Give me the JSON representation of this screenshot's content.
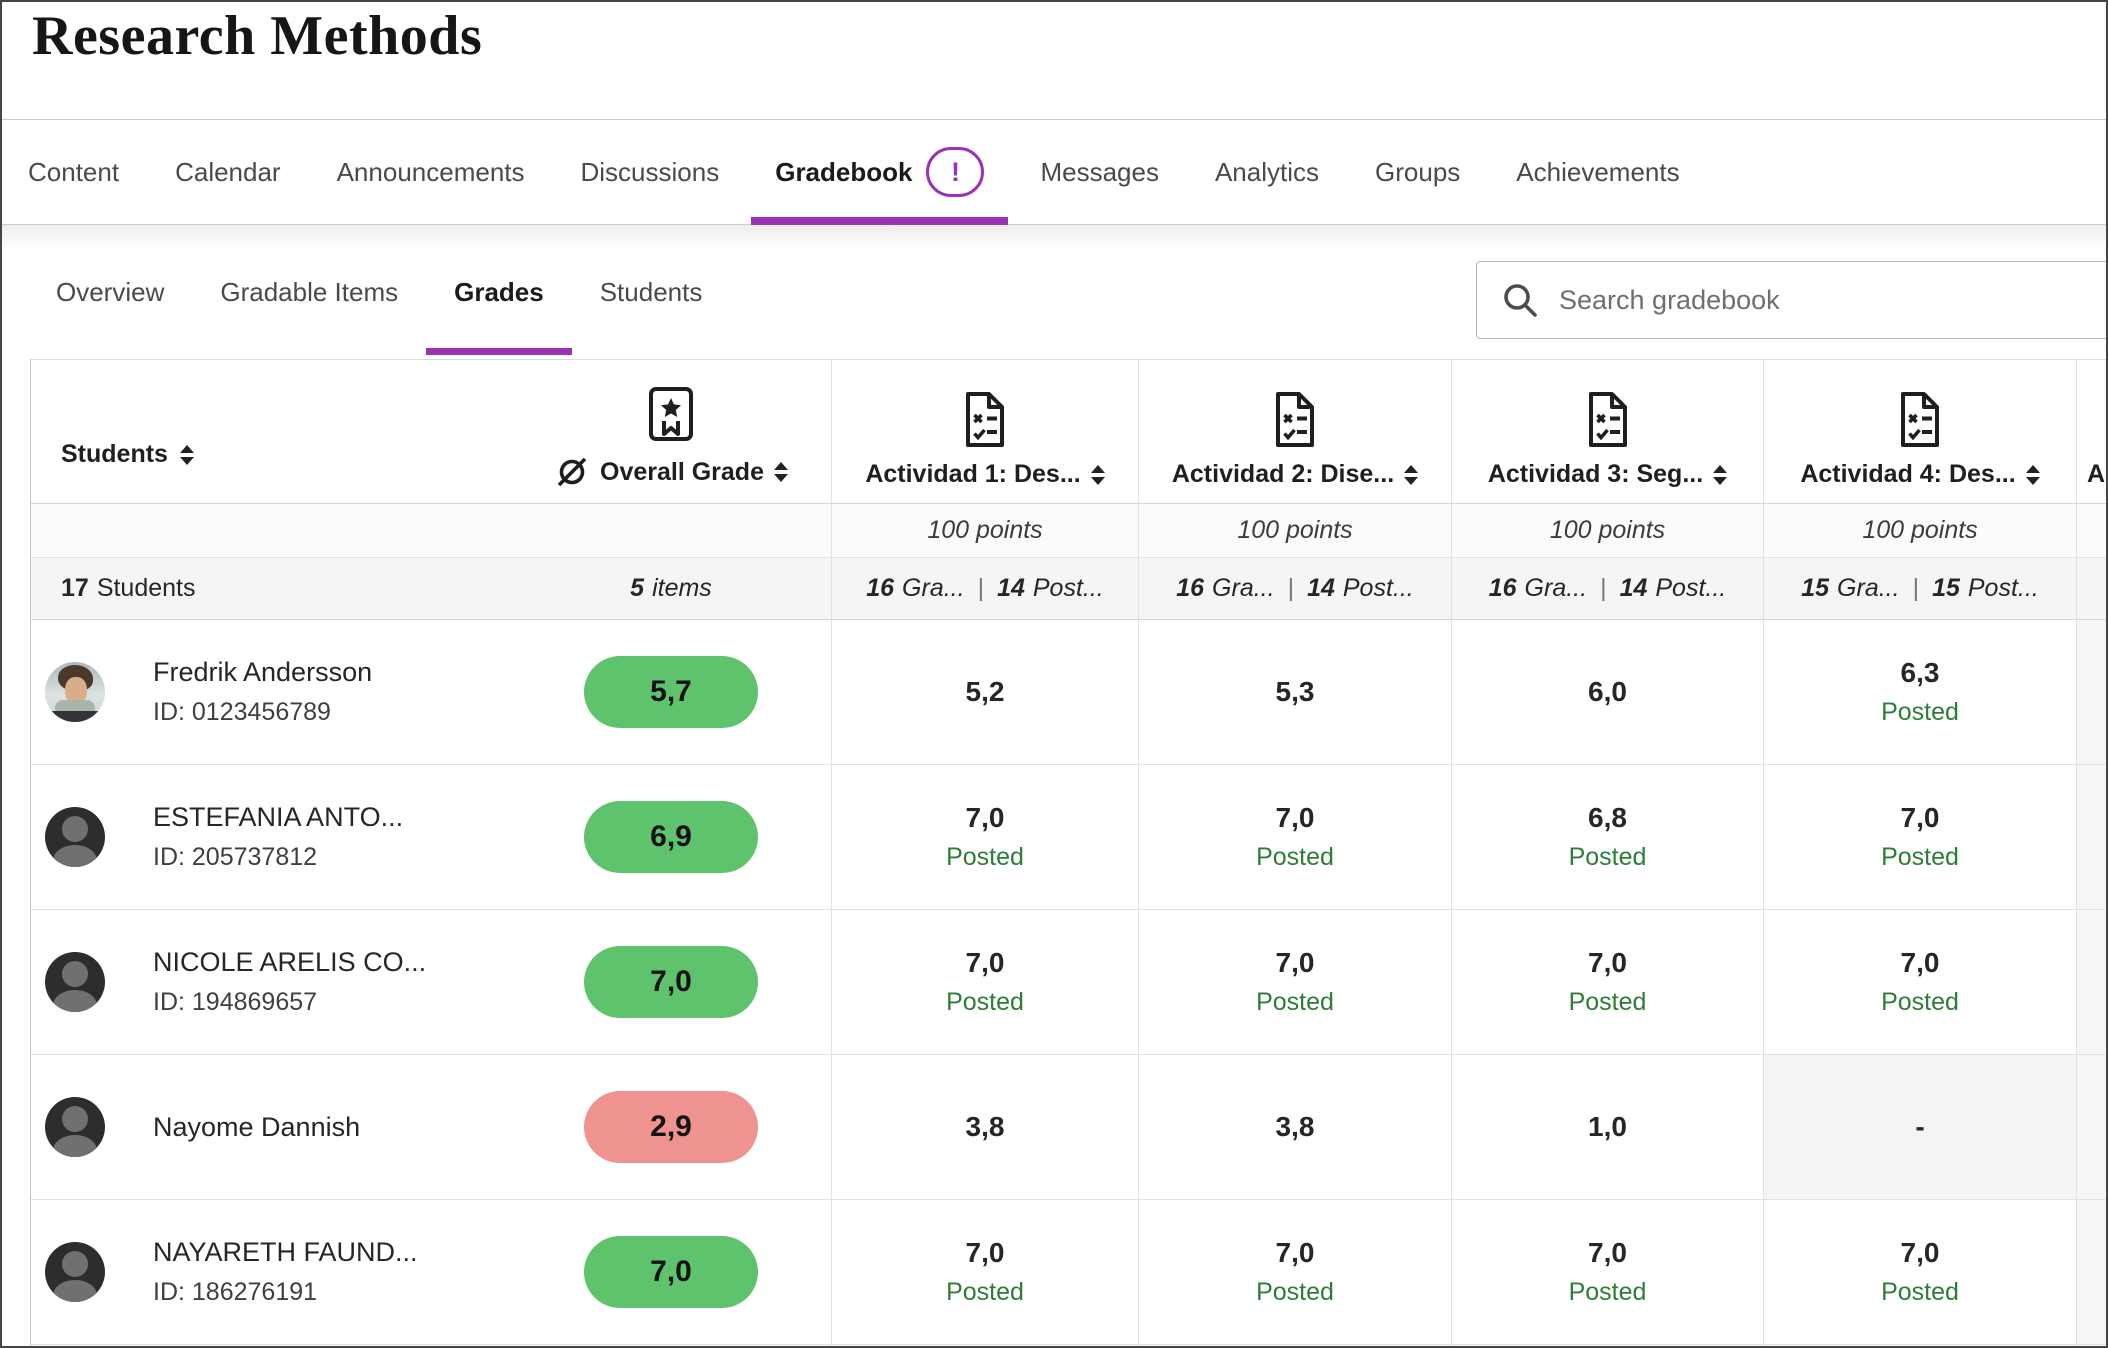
{
  "page": {
    "title": "Research Methods"
  },
  "main_tabs": [
    {
      "label": "Content"
    },
    {
      "label": "Calendar"
    },
    {
      "label": "Announcements"
    },
    {
      "label": "Discussions"
    },
    {
      "label": "Gradebook",
      "active": true,
      "badge": "!"
    },
    {
      "label": "Messages"
    },
    {
      "label": "Analytics"
    },
    {
      "label": "Groups"
    },
    {
      "label": "Achievements"
    }
  ],
  "sub_tabs": [
    {
      "label": "Overview"
    },
    {
      "label": "Gradable Items"
    },
    {
      "label": "Grades",
      "active": true
    },
    {
      "label": "Students"
    }
  ],
  "search": {
    "placeholder": "Search gradebook"
  },
  "table": {
    "students_header": {
      "label": "Students"
    },
    "overall_header": {
      "label": "Overall Grade"
    },
    "summary": {
      "students_count": "17",
      "students_label": "Students",
      "items_count": "5",
      "items_label": "items"
    },
    "columns": [
      {
        "label": "Actividad 1: Des...",
        "points": "100 points",
        "graded_count": "16",
        "graded_label": "Gra...",
        "posted_count": "14",
        "posted_label": "Post..."
      },
      {
        "label": "Actividad 2: Dise...",
        "points": "100 points",
        "graded_count": "16",
        "graded_label": "Gra...",
        "posted_count": "14",
        "posted_label": "Post..."
      },
      {
        "label": "Actividad 3: Seg...",
        "points": "100 points",
        "graded_count": "16",
        "graded_label": "Gra...",
        "posted_count": "14",
        "posted_label": "Post..."
      },
      {
        "label": "Actividad 4: Des...",
        "points": "100 points",
        "graded_count": "15",
        "graded_label": "Gra...",
        "posted_count": "15",
        "posted_label": "Post..."
      },
      {
        "label": "A",
        "partial": true
      }
    ],
    "posted_label": "Posted",
    "students": [
      {
        "name": "Fredrik Andersson",
        "id": "ID: 0123456789",
        "avatar": "photo",
        "overall": {
          "value": "5,7",
          "status": "good"
        },
        "grades": [
          {
            "value": "5,2"
          },
          {
            "value": "5,3"
          },
          {
            "value": "6,0"
          },
          {
            "value": "6,3",
            "posted": true
          }
        ]
      },
      {
        "name": "ESTEFANIA ANTO...",
        "id": "ID: 205737812",
        "avatar": "silhouette",
        "overall": {
          "value": "6,9",
          "status": "good"
        },
        "grades": [
          {
            "value": "7,0",
            "posted": true
          },
          {
            "value": "7,0",
            "posted": true
          },
          {
            "value": "6,8",
            "posted": true
          },
          {
            "value": "7,0",
            "posted": true
          }
        ]
      },
      {
        "name": "NICOLE ARELIS CO...",
        "id": "ID: 194869657",
        "avatar": "silhouette",
        "overall": {
          "value": "7,0",
          "status": "good"
        },
        "grades": [
          {
            "value": "7,0",
            "posted": true
          },
          {
            "value": "7,0",
            "posted": true
          },
          {
            "value": "7,0",
            "posted": true
          },
          {
            "value": "7,0",
            "posted": true
          }
        ]
      },
      {
        "name": "Nayome Dannish",
        "id": "",
        "avatar": "silhouette",
        "overall": {
          "value": "2,9",
          "status": "bad"
        },
        "grades": [
          {
            "value": "3,8"
          },
          {
            "value": "3,8"
          },
          {
            "value": "1,0"
          },
          {
            "value": "-",
            "empty": true
          }
        ]
      },
      {
        "name": "NAYARETH FAUND...",
        "id": "ID: 186276191",
        "avatar": "silhouette",
        "overall": {
          "value": "7,0",
          "status": "good"
        },
        "grades": [
          {
            "value": "7,0",
            "posted": true
          },
          {
            "value": "7,0",
            "posted": true
          },
          {
            "value": "7,0",
            "posted": true
          },
          {
            "value": "7,0",
            "posted": true
          }
        ]
      }
    ]
  },
  "colors": {
    "accent": "#9a32b4",
    "grade_pass": "#5fc36e",
    "grade_fail": "#ee938f",
    "posted_green": "#2d7d38"
  }
}
